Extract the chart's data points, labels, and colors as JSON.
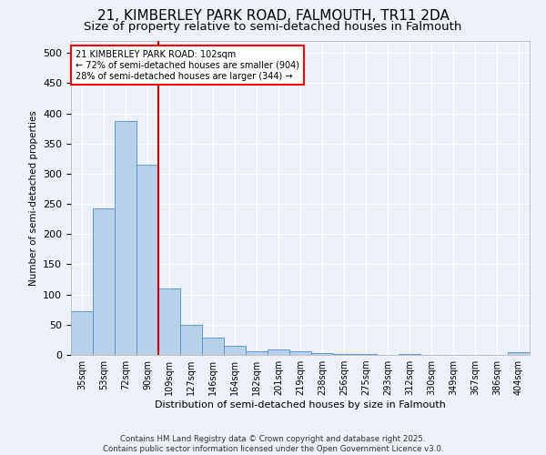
{
  "title1": "21, KIMBERLEY PARK ROAD, FALMOUTH, TR11 2DA",
  "title2": "Size of property relative to semi-detached houses in Falmouth",
  "xlabel": "Distribution of semi-detached houses by size in Falmouth",
  "ylabel": "Number of semi-detached properties",
  "categories": [
    "35sqm",
    "53sqm",
    "72sqm",
    "90sqm",
    "109sqm",
    "127sqm",
    "146sqm",
    "164sqm",
    "182sqm",
    "201sqm",
    "219sqm",
    "238sqm",
    "256sqm",
    "275sqm",
    "293sqm",
    "312sqm",
    "330sqm",
    "349sqm",
    "367sqm",
    "386sqm",
    "404sqm"
  ],
  "values": [
    73,
    242,
    387,
    315,
    110,
    50,
    29,
    15,
    6,
    9,
    6,
    3,
    2,
    1,
    0,
    1,
    0,
    0,
    0,
    0,
    4
  ],
  "bar_color": "#b8d0ea",
  "bar_edge_color": "#5b9bd5",
  "red_line_x": 3.5,
  "annotation_text": "21 KIMBERLEY PARK ROAD: 102sqm\n← 72% of semi-detached houses are smaller (904)\n28% of semi-detached houses are larger (344) →",
  "annotation_box_color": "white",
  "annotation_box_edge_color": "red",
  "red_line_color": "#cc0000",
  "footer": "Contains HM Land Registry data © Crown copyright and database right 2025.\nContains public sector information licensed under the Open Government Licence v3.0.",
  "bg_color": "#edf1fb",
  "plot_bg_color": "#edf1fb",
  "ylim_max": 520,
  "title1_fontsize": 11,
  "title2_fontsize": 9.5,
  "ytick_interval": 50
}
